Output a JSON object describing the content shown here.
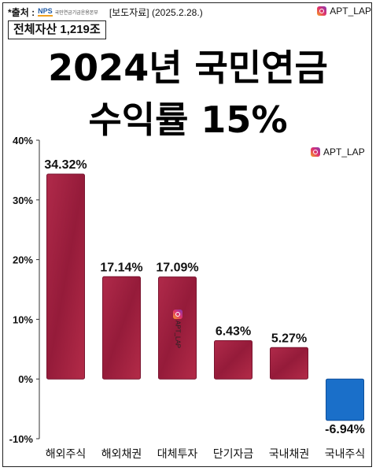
{
  "header": {
    "source_label": "*출처 :",
    "nps_mark": "NPS",
    "nps_org": "국민연금기금운용본부",
    "press": "[보도자료] (2025.2.28.)",
    "instagram": "APT_LAP"
  },
  "asset_badge": "전체자산 1,219조",
  "title_line1": "2024년 국민연금",
  "title_line2": "수익률 15%",
  "watermark": "APT_LAP",
  "colors": {
    "bar": "#a0203f",
    "negative_bar": "#1a6fc9"
  },
  "chart_data": {
    "type": "bar",
    "categories": [
      "해외주식",
      "해외채권",
      "대체투자",
      "단기자금",
      "국내채권",
      "국내주식"
    ],
    "values": [
      34.32,
      17.14,
      17.09,
      6.43,
      5.27,
      -6.94
    ],
    "value_labels": [
      "34.32%",
      "17.14%",
      "17.09%",
      "6.43%",
      "5.27%",
      "-6.94%"
    ],
    "ylim": [
      -10,
      40
    ],
    "yticks": [
      40,
      30,
      20,
      10,
      0,
      -10
    ],
    "ytick_labels": [
      "40%",
      "30%",
      "20%",
      "10%",
      "0%",
      "-10%"
    ],
    "grid": false,
    "legend": "none"
  }
}
